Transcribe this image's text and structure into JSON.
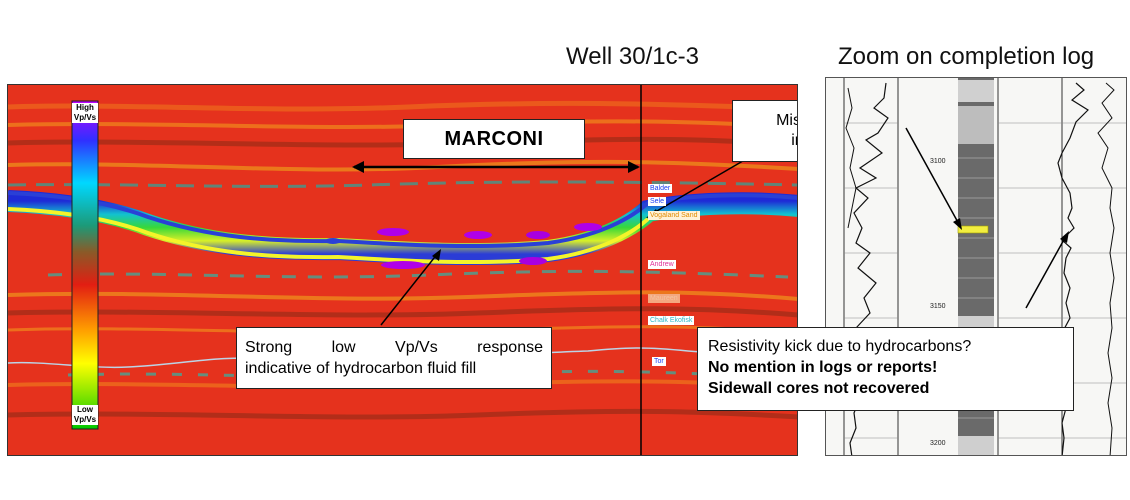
{
  "well_title": "Well 30/1c-3",
  "zoom_title": "Zoom on completion log",
  "marconi_label": "MARCONI",
  "missed_pay": {
    "line1": "Missed-pay",
    "line2": "interval"
  },
  "strong_response": {
    "line1": "Strong   low   Vp/Vs   response",
    "line2": "indicative of hydrocarbon fluid fill"
  },
  "resistivity": {
    "line1": "Resistivity kick due to hydrocarbons?",
    "line2": "No mention in logs or reports!",
    "line3": "Sidewall cores not recovered"
  },
  "colorbar": {
    "high": "High",
    "low": "Low",
    "unit": "Vp/Vs"
  },
  "horizons": [
    "Balder",
    "Sele",
    "Vogaland Sand",
    "Andrew",
    "Maureen",
    "Chalk Ekofisk",
    "Tor"
  ],
  "depth_labels": [
    "3100",
    "3150",
    "3200"
  ],
  "colors": {
    "background_red": "#e8321b",
    "horizon_line": "#bcd4e6"
  }
}
